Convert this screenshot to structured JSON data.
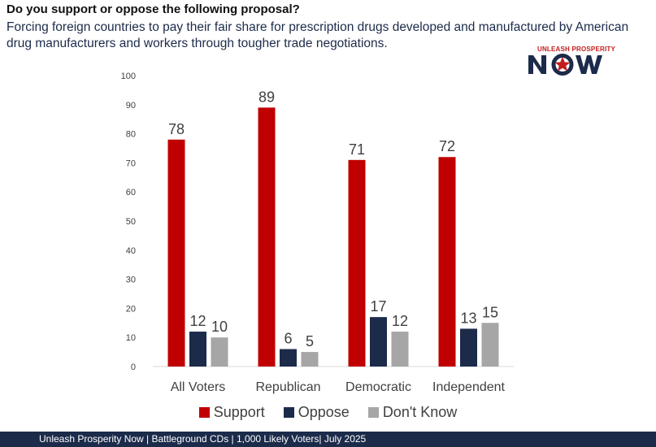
{
  "header": {
    "question": "Do you support or oppose the following proposal?",
    "proposal": "Forcing foreign countries to pay their fair share for prescription drugs developed and manufactured by American drug manufacturers and workers through tougher trade negotiations."
  },
  "logo": {
    "top_text": "UNLEASH PROSPERITY",
    "main_text": "NOW",
    "colors": {
      "red": "#c41c1c",
      "navy": "#1c2b4a"
    }
  },
  "chart_data": {
    "type": "bar",
    "categories": [
      "All Voters",
      "Republican",
      "Democratic",
      "Independent"
    ],
    "series": [
      {
        "name": "Support",
        "color": "#c00000",
        "values": [
          78,
          89,
          71,
          72
        ]
      },
      {
        "name": "Oppose",
        "color": "#1c2b4a",
        "values": [
          12,
          6,
          17,
          13
        ]
      },
      {
        "name": "Don't Know",
        "color": "#a6a6a6",
        "values": [
          10,
          5,
          12,
          15
        ]
      }
    ],
    "ylim": [
      0,
      100
    ],
    "yticks": [
      0,
      10,
      20,
      30,
      40,
      50,
      60,
      70,
      80,
      90,
      100
    ],
    "data_labels": true,
    "grid": false,
    "legend": "bottom"
  },
  "footer": {
    "text": "Unleash Prosperity Now | Battleground CDs | 1,000 Likely Voters| July 2025"
  }
}
